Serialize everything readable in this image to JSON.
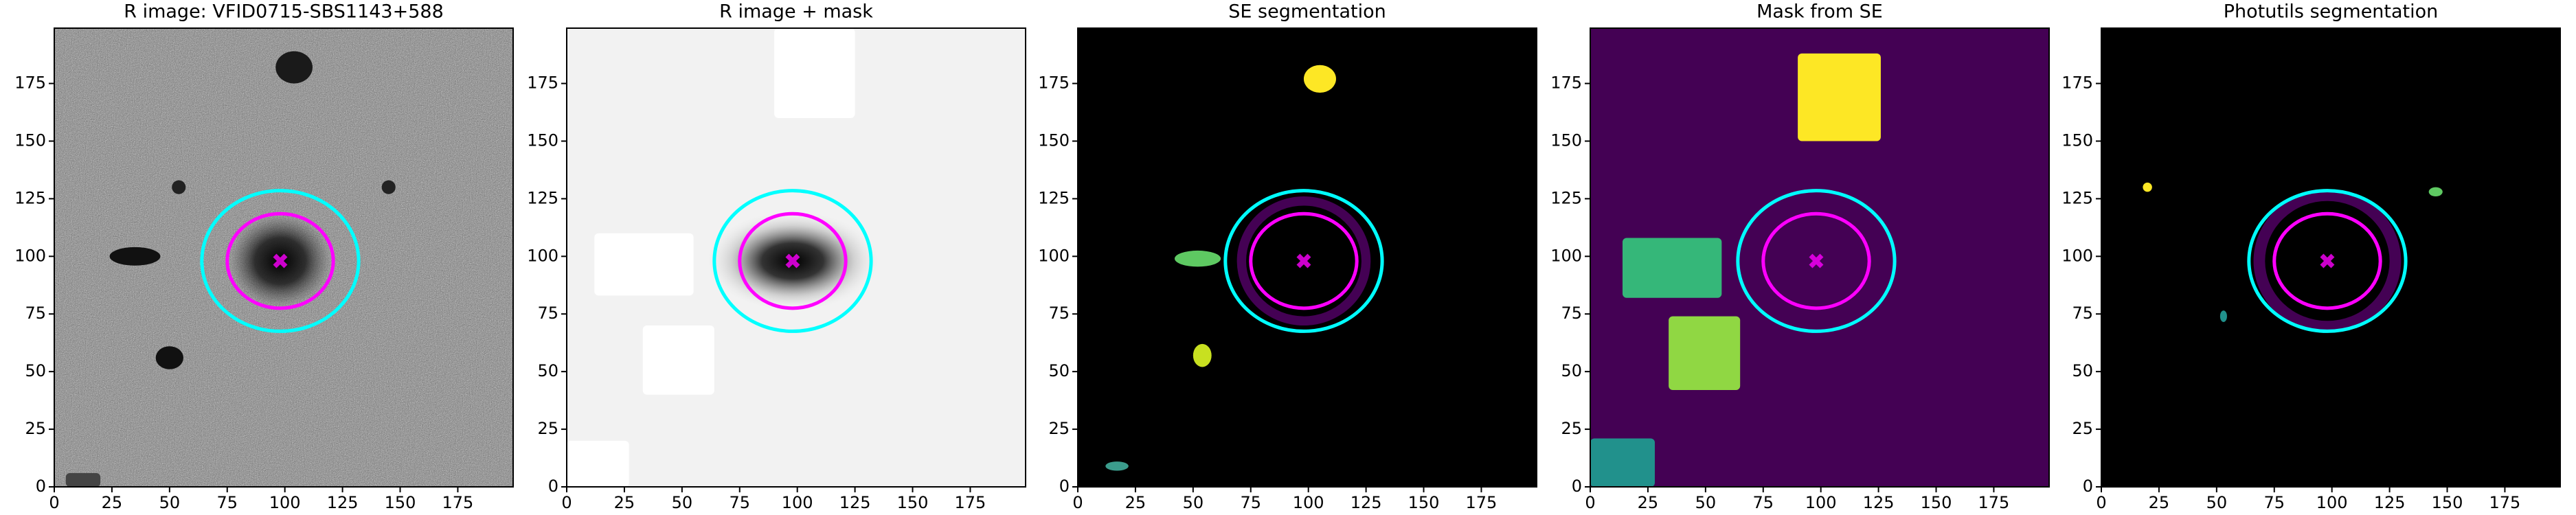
{
  "chart_data": [
    {
      "type": "image",
      "title": "R image: VFID0715-SBS1143+588",
      "background": "#7f7f7f",
      "xlim": [
        0,
        199
      ],
      "ylim": [
        0,
        199
      ],
      "xticks": [
        0,
        25,
        50,
        75,
        100,
        125,
        150,
        175
      ],
      "yticks": [
        0,
        25,
        50,
        75,
        100,
        125,
        150,
        175
      ],
      "ellipses": [
        {
          "x": 98,
          "y": 98,
          "width": 68,
          "height": 61,
          "color": "#00ffff"
        },
        {
          "x": 98,
          "y": 98,
          "width": 46,
          "height": 41,
          "color": "#ff00ff"
        }
      ],
      "marker": {
        "x": 98,
        "y": 98,
        "color": "#ff00ff"
      }
    },
    {
      "type": "image",
      "title": "R image + mask",
      "background": "#f2f2f2",
      "xlim": [
        0,
        199
      ],
      "ylim": [
        0,
        199
      ],
      "xticks": [
        0,
        25,
        50,
        75,
        100,
        125,
        150,
        175
      ],
      "yticks": [
        0,
        25,
        50,
        75,
        100,
        125,
        150,
        175
      ],
      "ellipses": [
        {
          "x": 98,
          "y": 98,
          "width": 68,
          "height": 61,
          "color": "#00ffff"
        },
        {
          "x": 98,
          "y": 98,
          "width": 46,
          "height": 41,
          "color": "#ff00ff"
        }
      ],
      "marker": {
        "x": 98,
        "y": 98,
        "color": "#ff00ff"
      }
    },
    {
      "type": "image",
      "title": "SE segmentation",
      "background": "#000000",
      "xlim": [
        0,
        199
      ],
      "ylim": [
        0,
        199
      ],
      "xticks": [
        0,
        25,
        50,
        75,
        100,
        125,
        150,
        175
      ],
      "yticks": [
        0,
        25,
        50,
        75,
        100,
        125,
        150,
        175
      ],
      "ellipses": [
        {
          "x": 98,
          "y": 98,
          "width": 68,
          "height": 61,
          "color": "#00ffff"
        },
        {
          "x": 98,
          "y": 98,
          "width": 46,
          "height": 41,
          "color": "#ff00ff"
        }
      ],
      "marker": {
        "x": 98,
        "y": 98,
        "color": "#ff00ff"
      }
    },
    {
      "type": "image",
      "title": "Mask from SE",
      "background": "#440154",
      "xlim": [
        0,
        199
      ],
      "ylim": [
        0,
        199
      ],
      "xticks": [
        0,
        25,
        50,
        75,
        100,
        125,
        150,
        175
      ],
      "yticks": [
        0,
        25,
        50,
        75,
        100,
        125,
        150,
        175
      ],
      "ellipses": [
        {
          "x": 98,
          "y": 98,
          "width": 68,
          "height": 61,
          "color": "#00ffff"
        },
        {
          "x": 98,
          "y": 98,
          "width": 46,
          "height": 41,
          "color": "#ff00ff"
        }
      ],
      "marker": {
        "x": 98,
        "y": 98,
        "color": "#ff00ff"
      }
    },
    {
      "type": "image",
      "title": "Photutils segmentation",
      "background": "#000000",
      "xlim": [
        0,
        199
      ],
      "ylim": [
        0,
        199
      ],
      "xticks": [
        0,
        25,
        50,
        75,
        100,
        125,
        150,
        175
      ],
      "yticks": [
        0,
        25,
        50,
        75,
        100,
        125,
        150,
        175
      ],
      "ellipses": [
        {
          "x": 98,
          "y": 98,
          "width": 68,
          "height": 61,
          "color": "#00ffff"
        },
        {
          "x": 98,
          "y": 98,
          "width": 46,
          "height": 41,
          "color": "#ff00ff"
        }
      ],
      "marker": {
        "x": 98,
        "y": 98,
        "color": "#ff00ff"
      }
    }
  ]
}
